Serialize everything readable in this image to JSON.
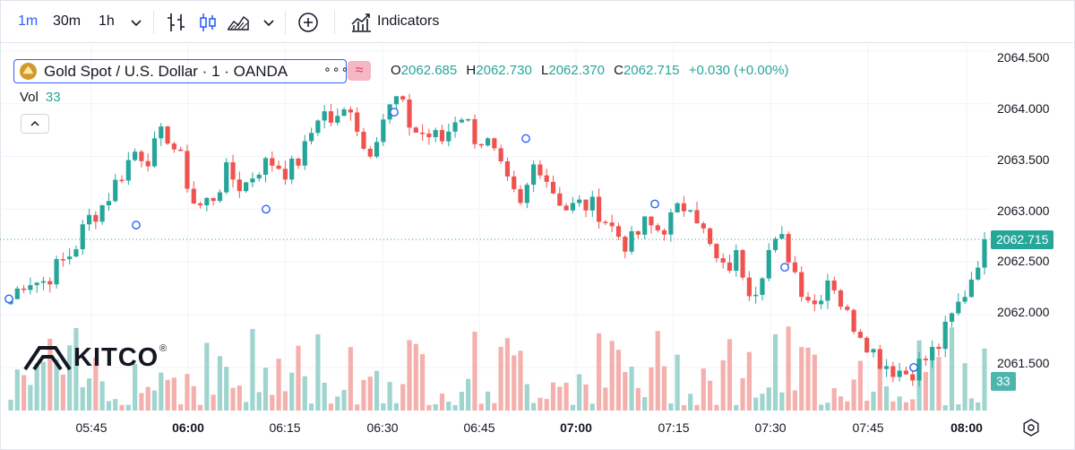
{
  "toolbar": {
    "intervals": [
      "1m",
      "30m",
      "1h"
    ],
    "active_interval": "1m",
    "indicators_label": "Indicators",
    "icons": [
      "chevron-down-icon",
      "bar-chart-icon",
      "candlestick-icon",
      "area-chart-icon",
      "chevron-down-icon",
      "add-compare-icon",
      "indicators-icon"
    ]
  },
  "legend": {
    "symbol_title": "Gold Spot / U.S. Dollar · 1 · OANDA",
    "more_label": "∘∘∘",
    "open_label": "O",
    "open": "2062.685",
    "high_label": "H",
    "high": "2062.730",
    "low_label": "L",
    "low": "2062.370",
    "close_label": "C",
    "close": "2062.715",
    "change": "+0.030 (+0.00%)",
    "volume_label": "Vol",
    "volume": "33"
  },
  "price_axis": {
    "ticks": [
      "2064.500",
      "2064.000",
      "2063.500",
      "2063.000",
      "2062.500",
      "2062.000",
      "2061.500"
    ],
    "last_price": "2062.715",
    "last_volume": "33"
  },
  "time_axis": {
    "ticks": [
      {
        "label": "05:45",
        "bold": false
      },
      {
        "label": "06:00",
        "bold": true
      },
      {
        "label": "06:15",
        "bold": false
      },
      {
        "label": "06:30",
        "bold": false
      },
      {
        "label": "06:45",
        "bold": false
      },
      {
        "label": "07:00",
        "bold": true
      },
      {
        "label": "07:15",
        "bold": false
      },
      {
        "label": "07:30",
        "bold": false
      },
      {
        "label": "07:45",
        "bold": false
      },
      {
        "label": "08:00",
        "bold": true
      }
    ]
  },
  "watermark": {
    "brand": "KITCO",
    "registered": "®"
  },
  "colors": {
    "up": "#26a69a",
    "down": "#ef5350",
    "up_volume": "#9fd4cf",
    "down_volume": "#f4b0ad",
    "accent": "#2962ff",
    "grid": "#f0f3fa"
  },
  "chart_data": {
    "type": "candlestick",
    "series_values_in": "price (USD)",
    "x_range": [
      "05:37",
      "08:01"
    ],
    "ylim": [
      2061.1,
      2064.55
    ],
    "grid": true,
    "ohlc_close_path": [
      2062.15,
      2062.35,
      2062.3,
      2062.45,
      2062.6,
      2062.9,
      2063.05,
      2063.3,
      2063.55,
      2063.5,
      2063.75,
      2063.45,
      2063.0,
      2063.1,
      2063.35,
      2063.2,
      2063.4,
      2063.45,
      2063.35,
      2063.55,
      2063.95,
      2063.8,
      2064.0,
      2063.5,
      2063.85,
      2064.05,
      2063.75,
      2063.7,
      2063.65,
      2063.95,
      2063.7,
      2063.6,
      2063.25,
      2063.0,
      2063.5,
      2063.2,
      2063.0,
      2063.05,
      2063.0,
      2062.8,
      2062.65,
      2062.85,
      2062.8,
      2062.95,
      2063.1,
      2062.7,
      2062.4,
      2062.55,
      2062.2,
      2062.6,
      2062.7,
      2062.3,
      2062.1,
      2062.4,
      2062.0,
      2061.85,
      2061.6,
      2061.5,
      2061.45,
      2061.55,
      2061.7,
      2062.0,
      2062.3,
      2062.715
    ],
    "volume_level": "low-to-moderate, 1-minute bars"
  }
}
